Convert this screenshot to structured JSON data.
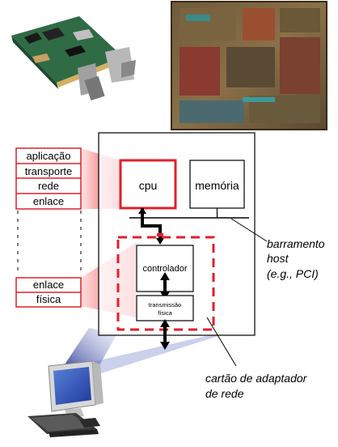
{
  "protocol_stack_host": {
    "layers": [
      "aplicação",
      "transporte",
      "rede",
      "enlace"
    ]
  },
  "protocol_stack_adapter": {
    "layers": [
      "enlace",
      "física"
    ]
  },
  "host": {
    "cpu": "cpu",
    "memory": "memória"
  },
  "adapter": {
    "controller": "controlador",
    "phys_tx_line1": "transmissão",
    "phys_tx_line2": "física"
  },
  "bus_label": {
    "line1": "barramento",
    "line2": "host",
    "line3": "(e.g., PCI)"
  },
  "adapter_label": {
    "line1": "cartão de adaptador",
    "line2": "de rede"
  },
  "colors": {
    "accent": "#e0202a",
    "beam_red": "#e0202a",
    "beam_blue": "#3a4aa0"
  }
}
